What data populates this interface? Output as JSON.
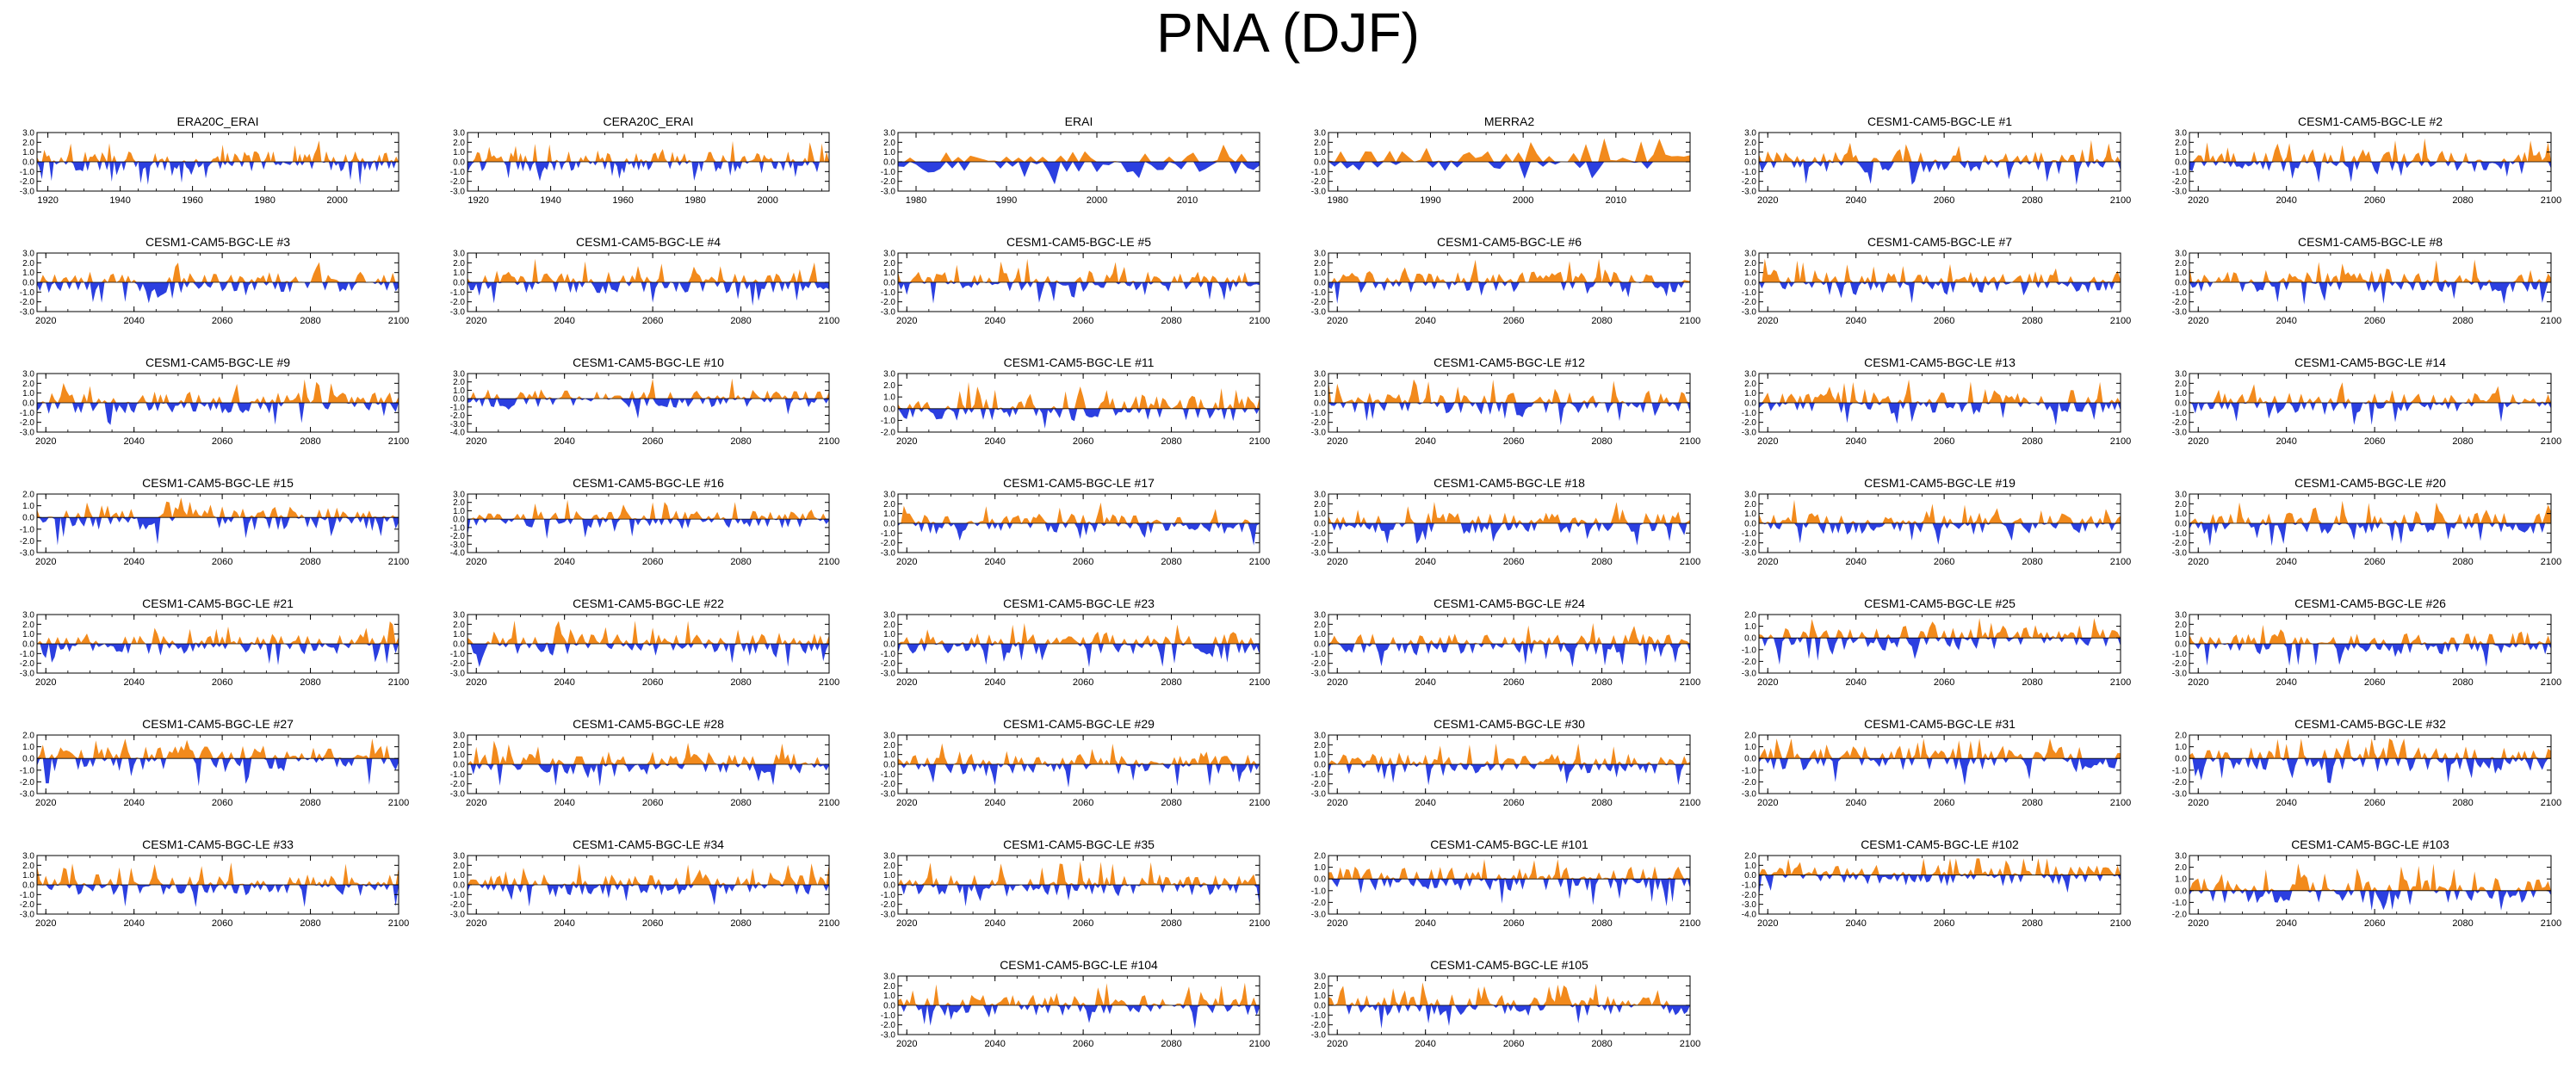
{
  "title": "PNA (DJF)",
  "colors": {
    "positive": "#f28a1c",
    "negative": "#2b3fe0",
    "frame": "#000000"
  },
  "chart_data": [
    {
      "type": "area",
      "title": "ERA20C_ERAI",
      "xrange": [
        1917,
        2017
      ],
      "xticks": [
        "1920",
        "1940",
        "1960",
        "1980",
        "2000"
      ],
      "ylim": [
        -3,
        3
      ],
      "yticks": [
        "3.0",
        "2.0",
        "1.0",
        "0.0",
        "-1.0",
        "-2.0",
        "-3.0"
      ],
      "seed": 1
    },
    {
      "type": "area",
      "title": "CERA20C_ERAI",
      "xrange": [
        1917,
        2017
      ],
      "xticks": [
        "1920",
        "1940",
        "1960",
        "1980",
        "2000"
      ],
      "ylim": [
        -3,
        3
      ],
      "yticks": [
        "3.0",
        "2.0",
        "1.0",
        "0.0",
        "-1.0",
        "-2.0",
        "-3.0"
      ],
      "seed": 2
    },
    {
      "type": "area",
      "title": "ERAI",
      "xrange": [
        1978,
        2018
      ],
      "xticks": [
        "1980",
        "1990",
        "2000",
        "2010"
      ],
      "ylim": [
        -3,
        3
      ],
      "yticks": [
        "3.0",
        "2.0",
        "1.0",
        "0.0",
        "-1.0",
        "-2.0",
        "-3.0"
      ],
      "seed": 3
    },
    {
      "type": "area",
      "title": "MERRA2",
      "xrange": [
        1979,
        2018
      ],
      "xticks": [
        "1980",
        "1990",
        "2000",
        "2010"
      ],
      "ylim": [
        -3,
        3
      ],
      "yticks": [
        "3.0",
        "2.0",
        "1.0",
        "0.0",
        "-1.0",
        "-2.0",
        "-3.0"
      ],
      "seed": 4
    },
    {
      "type": "area",
      "title": "CESM1-CAM5-BGC-LE #1",
      "xrange": [
        2018,
        2100
      ],
      "xticks": [
        "2020",
        "2040",
        "2060",
        "2080",
        "2100"
      ],
      "ylim": [
        -3,
        3
      ],
      "yticks": [
        "3.0",
        "2.0",
        "1.0",
        "0.0",
        "-1.0",
        "-2.0",
        "-3.0"
      ],
      "seed": 5
    },
    {
      "type": "area",
      "title": "CESM1-CAM5-BGC-LE #2",
      "xrange": [
        2018,
        2100
      ],
      "xticks": [
        "2020",
        "2040",
        "2060",
        "2080",
        "2100"
      ],
      "ylim": [
        -3,
        3
      ],
      "yticks": [
        "3.0",
        "2.0",
        "1.0",
        "0.0",
        "-1.0",
        "-2.0",
        "-3.0"
      ],
      "seed": 6
    },
    {
      "type": "area",
      "title": "CESM1-CAM5-BGC-LE #3",
      "xrange": [
        2018,
        2100
      ],
      "xticks": [
        "2020",
        "2040",
        "2060",
        "2080",
        "2100"
      ],
      "ylim": [
        -3,
        3
      ],
      "yticks": [
        "3.0",
        "2.0",
        "1.0",
        "0.0",
        "-1.0",
        "-2.0",
        "-3.0"
      ],
      "seed": 7
    },
    {
      "type": "area",
      "title": "CESM1-CAM5-BGC-LE #4",
      "xrange": [
        2018,
        2100
      ],
      "xticks": [
        "2020",
        "2040",
        "2060",
        "2080",
        "2100"
      ],
      "ylim": [
        -3,
        3
      ],
      "yticks": [
        "3.0",
        "2.0",
        "1.0",
        "0.0",
        "-1.0",
        "-2.0",
        "-3.0"
      ],
      "seed": 8
    },
    {
      "type": "area",
      "title": "CESM1-CAM5-BGC-LE #5",
      "xrange": [
        2018,
        2100
      ],
      "xticks": [
        "2020",
        "2040",
        "2060",
        "2080",
        "2100"
      ],
      "ylim": [
        -3,
        3
      ],
      "yticks": [
        "3.0",
        "2.0",
        "1.0",
        "0.0",
        "-1.0",
        "-2.0",
        "-3.0"
      ],
      "seed": 9
    },
    {
      "type": "area",
      "title": "CESM1-CAM5-BGC-LE #6",
      "xrange": [
        2018,
        2100
      ],
      "xticks": [
        "2020",
        "2040",
        "2060",
        "2080",
        "2100"
      ],
      "ylim": [
        -3,
        3
      ],
      "yticks": [
        "3.0",
        "2.0",
        "1.0",
        "0.0",
        "-1.0",
        "-2.0",
        "-3.0"
      ],
      "seed": 10
    },
    {
      "type": "area",
      "title": "CESM1-CAM5-BGC-LE #7",
      "xrange": [
        2018,
        2100
      ],
      "xticks": [
        "2020",
        "2040",
        "2060",
        "2080",
        "2100"
      ],
      "ylim": [
        -3,
        3
      ],
      "yticks": [
        "3.0",
        "2.0",
        "1.0",
        "0.0",
        "-1.0",
        "-2.0",
        "-3.0"
      ],
      "seed": 11
    },
    {
      "type": "area",
      "title": "CESM1-CAM5-BGC-LE #8",
      "xrange": [
        2018,
        2100
      ],
      "xticks": [
        "2020",
        "2040",
        "2060",
        "2080",
        "2100"
      ],
      "ylim": [
        -3,
        3
      ],
      "yticks": [
        "3.0",
        "2.0",
        "1.0",
        "0.0",
        "-1.0",
        "-2.0",
        "-3.0"
      ],
      "seed": 12
    },
    {
      "type": "area",
      "title": "CESM1-CAM5-BGC-LE #9",
      "xrange": [
        2018,
        2100
      ],
      "xticks": [
        "2020",
        "2040",
        "2060",
        "2080",
        "2100"
      ],
      "ylim": [
        -3,
        3
      ],
      "yticks": [
        "3.0",
        "2.0",
        "1.0",
        "0.0",
        "-1.0",
        "-2.0",
        "-3.0"
      ],
      "seed": 13
    },
    {
      "type": "area",
      "title": "CESM1-CAM5-BGC-LE #10",
      "xrange": [
        2018,
        2100
      ],
      "xticks": [
        "2020",
        "2040",
        "2060",
        "2080",
        "2100"
      ],
      "ylim": [
        -4,
        3
      ],
      "yticks": [
        "3.0",
        "2.0",
        "1.0",
        "0.0",
        "-1.0",
        "-2.0",
        "-3.0",
        "-4.0"
      ],
      "seed": 14
    },
    {
      "type": "area",
      "title": "CESM1-CAM5-BGC-LE #11",
      "xrange": [
        2018,
        2100
      ],
      "xticks": [
        "2020",
        "2040",
        "2060",
        "2080",
        "2100"
      ],
      "ylim": [
        -2,
        3
      ],
      "yticks": [
        "3.0",
        "2.0",
        "1.0",
        "0.0",
        "-1.0",
        "-2.0"
      ],
      "seed": 15
    },
    {
      "type": "area",
      "title": "CESM1-CAM5-BGC-LE #12",
      "xrange": [
        2018,
        2100
      ],
      "xticks": [
        "2020",
        "2040",
        "2060",
        "2080",
        "2100"
      ],
      "ylim": [
        -3,
        3
      ],
      "yticks": [
        "3.0",
        "2.0",
        "1.0",
        "0.0",
        "-1.0",
        "-2.0",
        "-3.0"
      ],
      "seed": 16
    },
    {
      "type": "area",
      "title": "CESM1-CAM5-BGC-LE #13",
      "xrange": [
        2018,
        2100
      ],
      "xticks": [
        "2020",
        "2040",
        "2060",
        "2080",
        "2100"
      ],
      "ylim": [
        -3,
        3
      ],
      "yticks": [
        "3.0",
        "2.0",
        "1.0",
        "0.0",
        "-1.0",
        "-2.0",
        "-3.0"
      ],
      "seed": 17
    },
    {
      "type": "area",
      "title": "CESM1-CAM5-BGC-LE #14",
      "xrange": [
        2018,
        2100
      ],
      "xticks": [
        "2020",
        "2040",
        "2060",
        "2080",
        "2100"
      ],
      "ylim": [
        -3,
        3
      ],
      "yticks": [
        "3.0",
        "2.0",
        "1.0",
        "0.0",
        "-1.0",
        "-2.0",
        "-3.0"
      ],
      "seed": 18
    },
    {
      "type": "area",
      "title": "CESM1-CAM5-BGC-LE #15",
      "xrange": [
        2018,
        2100
      ],
      "xticks": [
        "2020",
        "2040",
        "2060",
        "2080",
        "2100"
      ],
      "ylim": [
        -3,
        2
      ],
      "yticks": [
        "2.0",
        "1.0",
        "0.0",
        "-1.0",
        "-2.0",
        "-3.0"
      ],
      "seed": 19
    },
    {
      "type": "area",
      "title": "CESM1-CAM5-BGC-LE #16",
      "xrange": [
        2018,
        2100
      ],
      "xticks": [
        "2020",
        "2040",
        "2060",
        "2080",
        "2100"
      ],
      "ylim": [
        -4,
        3
      ],
      "yticks": [
        "3.0",
        "2.0",
        "1.0",
        "0.0",
        "-1.0",
        "-2.0",
        "-3.0",
        "-4.0"
      ],
      "seed": 20
    },
    {
      "type": "area",
      "title": "CESM1-CAM5-BGC-LE #17",
      "xrange": [
        2018,
        2100
      ],
      "xticks": [
        "2020",
        "2040",
        "2060",
        "2080",
        "2100"
      ],
      "ylim": [
        -3,
        3
      ],
      "yticks": [
        "3.0",
        "2.0",
        "1.0",
        "0.0",
        "-1.0",
        "-2.0",
        "-3.0"
      ],
      "seed": 21
    },
    {
      "type": "area",
      "title": "CESM1-CAM5-BGC-LE #18",
      "xrange": [
        2018,
        2100
      ],
      "xticks": [
        "2020",
        "2040",
        "2060",
        "2080",
        "2100"
      ],
      "ylim": [
        -3,
        3
      ],
      "yticks": [
        "3.0",
        "2.0",
        "1.0",
        "0.0",
        "-1.0",
        "-2.0",
        "-3.0"
      ],
      "seed": 22
    },
    {
      "type": "area",
      "title": "CESM1-CAM5-BGC-LE #19",
      "xrange": [
        2018,
        2100
      ],
      "xticks": [
        "2020",
        "2040",
        "2060",
        "2080",
        "2100"
      ],
      "ylim": [
        -3,
        3
      ],
      "yticks": [
        "3.0",
        "2.0",
        "1.0",
        "0.0",
        "-1.0",
        "-2.0",
        "-3.0"
      ],
      "seed": 23
    },
    {
      "type": "area",
      "title": "CESM1-CAM5-BGC-LE #20",
      "xrange": [
        2018,
        2100
      ],
      "xticks": [
        "2020",
        "2040",
        "2060",
        "2080",
        "2100"
      ],
      "ylim": [
        -3,
        3
      ],
      "yticks": [
        "3.0",
        "2.0",
        "1.0",
        "0.0",
        "-1.0",
        "-2.0",
        "-3.0"
      ],
      "seed": 24
    },
    {
      "type": "area",
      "title": "CESM1-CAM5-BGC-LE #21",
      "xrange": [
        2018,
        2100
      ],
      "xticks": [
        "2020",
        "2040",
        "2060",
        "2080",
        "2100"
      ],
      "ylim": [
        -3,
        3
      ],
      "yticks": [
        "3.0",
        "2.0",
        "1.0",
        "0.0",
        "-1.0",
        "-2.0",
        "-3.0"
      ],
      "seed": 25
    },
    {
      "type": "area",
      "title": "CESM1-CAM5-BGC-LE #22",
      "xrange": [
        2018,
        2100
      ],
      "xticks": [
        "2020",
        "2040",
        "2060",
        "2080",
        "2100"
      ],
      "ylim": [
        -3,
        3
      ],
      "yticks": [
        "3.0",
        "2.0",
        "1.0",
        "0.0",
        "-1.0",
        "-2.0",
        "-3.0"
      ],
      "seed": 26
    },
    {
      "type": "area",
      "title": "CESM1-CAM5-BGC-LE #23",
      "xrange": [
        2018,
        2100
      ],
      "xticks": [
        "2020",
        "2040",
        "2060",
        "2080",
        "2100"
      ],
      "ylim": [
        -3,
        3
      ],
      "yticks": [
        "3.0",
        "2.0",
        "1.0",
        "0.0",
        "-1.0",
        "-2.0",
        "-3.0"
      ],
      "seed": 27
    },
    {
      "type": "area",
      "title": "CESM1-CAM5-BGC-LE #24",
      "xrange": [
        2018,
        2100
      ],
      "xticks": [
        "2020",
        "2040",
        "2060",
        "2080",
        "2100"
      ],
      "ylim": [
        -3,
        3
      ],
      "yticks": [
        "3.0",
        "2.0",
        "1.0",
        "0.0",
        "-1.0",
        "-2.0",
        "-3.0"
      ],
      "seed": 28
    },
    {
      "type": "area",
      "title": "CESM1-CAM5-BGC-LE #25",
      "xrange": [
        2018,
        2100
      ],
      "xticks": [
        "2020",
        "2040",
        "2060",
        "2080",
        "2100"
      ],
      "ylim": [
        -3,
        2
      ],
      "yticks": [
        "2.0",
        "1.0",
        "0.0",
        "-1.0",
        "-2.0",
        "-3.0"
      ],
      "seed": 29
    },
    {
      "type": "area",
      "title": "CESM1-CAM5-BGC-LE #26",
      "xrange": [
        2018,
        2100
      ],
      "xticks": [
        "2020",
        "2040",
        "2060",
        "2080",
        "2100"
      ],
      "ylim": [
        -3,
        3
      ],
      "yticks": [
        "3.0",
        "2.0",
        "1.0",
        "0.0",
        "-1.0",
        "-2.0",
        "-3.0"
      ],
      "seed": 30
    },
    {
      "type": "area",
      "title": "CESM1-CAM5-BGC-LE #27",
      "xrange": [
        2018,
        2100
      ],
      "xticks": [
        "2020",
        "2040",
        "2060",
        "2080",
        "2100"
      ],
      "ylim": [
        -3,
        2
      ],
      "yticks": [
        "2.0",
        "1.0",
        "0.0",
        "-1.0",
        "-2.0",
        "-3.0"
      ],
      "seed": 31
    },
    {
      "type": "area",
      "title": "CESM1-CAM5-BGC-LE #28",
      "xrange": [
        2018,
        2100
      ],
      "xticks": [
        "2020",
        "2040",
        "2060",
        "2080",
        "2100"
      ],
      "ylim": [
        -3,
        3
      ],
      "yticks": [
        "3.0",
        "2.0",
        "1.0",
        "0.0",
        "-1.0",
        "-2.0",
        "-3.0"
      ],
      "seed": 32
    },
    {
      "type": "area",
      "title": "CESM1-CAM5-BGC-LE #29",
      "xrange": [
        2018,
        2100
      ],
      "xticks": [
        "2020",
        "2040",
        "2060",
        "2080",
        "2100"
      ],
      "ylim": [
        -3,
        3
      ],
      "yticks": [
        "3.0",
        "2.0",
        "1.0",
        "0.0",
        "-1.0",
        "-2.0",
        "-3.0"
      ],
      "seed": 33
    },
    {
      "type": "area",
      "title": "CESM1-CAM5-BGC-LE #30",
      "xrange": [
        2018,
        2100
      ],
      "xticks": [
        "2020",
        "2040",
        "2060",
        "2080",
        "2100"
      ],
      "ylim": [
        -3,
        3
      ],
      "yticks": [
        "3.0",
        "2.0",
        "1.0",
        "0.0",
        "-1.0",
        "-2.0",
        "-3.0"
      ],
      "seed": 34
    },
    {
      "type": "area",
      "title": "CESM1-CAM5-BGC-LE #31",
      "xrange": [
        2018,
        2100
      ],
      "xticks": [
        "2020",
        "2040",
        "2060",
        "2080",
        "2100"
      ],
      "ylim": [
        -3,
        2
      ],
      "yticks": [
        "2.0",
        "1.0",
        "0.0",
        "-1.0",
        "-2.0",
        "-3.0"
      ],
      "seed": 35
    },
    {
      "type": "area",
      "title": "CESM1-CAM5-BGC-LE #32",
      "xrange": [
        2018,
        2100
      ],
      "xticks": [
        "2020",
        "2040",
        "2060",
        "2080",
        "2100"
      ],
      "ylim": [
        -3,
        2
      ],
      "yticks": [
        "2.0",
        "1.0",
        "0.0",
        "-1.0",
        "-2.0",
        "-3.0"
      ],
      "seed": 36
    },
    {
      "type": "area",
      "title": "CESM1-CAM5-BGC-LE #33",
      "xrange": [
        2018,
        2100
      ],
      "xticks": [
        "2020",
        "2040",
        "2060",
        "2080",
        "2100"
      ],
      "ylim": [
        -3,
        3
      ],
      "yticks": [
        "3.0",
        "2.0",
        "1.0",
        "0.0",
        "-1.0",
        "-2.0",
        "-3.0"
      ],
      "seed": 37
    },
    {
      "type": "area",
      "title": "CESM1-CAM5-BGC-LE #34",
      "xrange": [
        2018,
        2100
      ],
      "xticks": [
        "2020",
        "2040",
        "2060",
        "2080",
        "2100"
      ],
      "ylim": [
        -3,
        3
      ],
      "yticks": [
        "3.0",
        "2.0",
        "1.0",
        "0.0",
        "-1.0",
        "-2.0",
        "-3.0"
      ],
      "seed": 38
    },
    {
      "type": "area",
      "title": "CESM1-CAM5-BGC-LE #35",
      "xrange": [
        2018,
        2100
      ],
      "xticks": [
        "2020",
        "2040",
        "2060",
        "2080",
        "2100"
      ],
      "ylim": [
        -3,
        3
      ],
      "yticks": [
        "3.0",
        "2.0",
        "1.0",
        "0.0",
        "-1.0",
        "-2.0",
        "-3.0"
      ],
      "seed": 39
    },
    {
      "type": "area",
      "title": "CESM1-CAM5-BGC-LE #101",
      "xrange": [
        2018,
        2100
      ],
      "xticks": [
        "2020",
        "2040",
        "2060",
        "2080",
        "2100"
      ],
      "ylim": [
        -3,
        2
      ],
      "yticks": [
        "2.0",
        "1.0",
        "0.0",
        "-1.0",
        "-2.0",
        "-3.0"
      ],
      "seed": 40
    },
    {
      "type": "area",
      "title": "CESM1-CAM5-BGC-LE #102",
      "xrange": [
        2018,
        2100
      ],
      "xticks": [
        "2020",
        "2040",
        "2060",
        "2080",
        "2100"
      ],
      "ylim": [
        -4,
        2
      ],
      "yticks": [
        "2.0",
        "1.0",
        "0.0",
        "-1.0",
        "-2.0",
        "-3.0",
        "-4.0"
      ],
      "seed": 41
    },
    {
      "type": "area",
      "title": "CESM1-CAM5-BGC-LE #103",
      "xrange": [
        2018,
        2100
      ],
      "xticks": [
        "2020",
        "2040",
        "2060",
        "2080",
        "2100"
      ],
      "ylim": [
        -2,
        3
      ],
      "yticks": [
        "3.0",
        "2.0",
        "1.0",
        "0.0",
        "-1.0",
        "-2.0"
      ],
      "seed": 42
    },
    {
      "type": "area",
      "title": "CESM1-CAM5-BGC-LE #104",
      "xrange": [
        2018,
        2100
      ],
      "xticks": [
        "2020",
        "2040",
        "2060",
        "2080",
        "2100"
      ],
      "ylim": [
        -3,
        3
      ],
      "yticks": [
        "3.0",
        "2.0",
        "1.0",
        "0.0",
        "-1.0",
        "-2.0",
        "-3.0"
      ],
      "seed": 43
    },
    {
      "type": "area",
      "title": "CESM1-CAM5-BGC-LE #105",
      "xrange": [
        2018,
        2100
      ],
      "xticks": [
        "2020",
        "2040",
        "2060",
        "2080",
        "2100"
      ],
      "ylim": [
        -3,
        3
      ],
      "yticks": [
        "3.0",
        "2.0",
        "1.0",
        "0.0",
        "-1.0",
        "-2.0",
        "-3.0"
      ],
      "seed": 44
    }
  ]
}
